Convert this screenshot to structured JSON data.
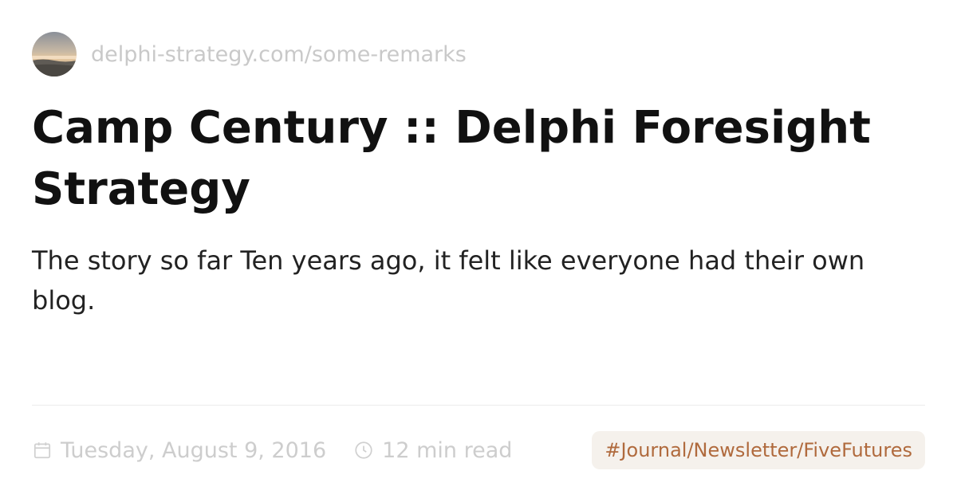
{
  "site": {
    "avatar_icon": "landscape-avatar",
    "url": "delphi-strategy.com/some-remarks"
  },
  "article": {
    "title": "Camp Century :: Delphi Foresight Strategy",
    "description": "The story so far Ten years ago, it felt like everyone had their own blog."
  },
  "meta": {
    "date_icon": "calendar-icon",
    "date": "Tuesday, August 9, 2016",
    "read_time_icon": "clock-icon",
    "read_time": "12 min read"
  },
  "tag": {
    "label": "#Journal/Newsletter/FiveFutures"
  },
  "colors": {
    "title": "#111111",
    "muted": "#cdcdcd",
    "tag_text": "#b06a3d",
    "tag_bg": "#f5f1ec"
  }
}
